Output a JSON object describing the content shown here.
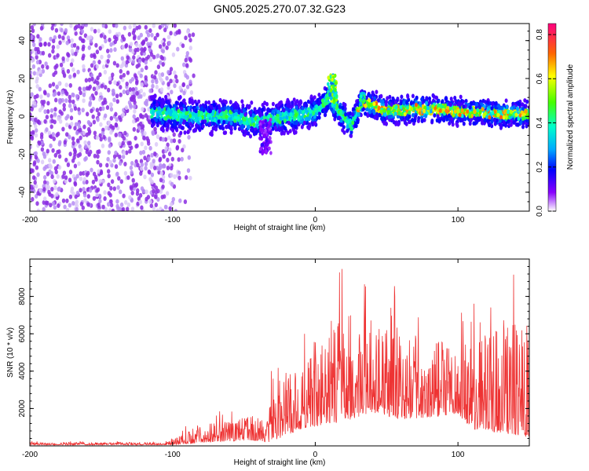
{
  "figure_title": "GN05.2025.270.07.32.G23",
  "chart_data": [
    {
      "type": "heatmap",
      "title": "GN05.2025.270.07.32.G23",
      "xlabel": "Height of straight line (km)",
      "ylabel": "Frequency (Hz)",
      "xlim": [
        -200,
        150
      ],
      "ylim": [
        -50,
        49
      ],
      "x_ticks": [
        -200,
        -100,
        0,
        100
      ],
      "y_ticks": [
        -40,
        -20,
        0,
        20,
        40
      ],
      "x_tick_labels": [
        "-200",
        "-100",
        "0",
        "100"
      ],
      "y_tick_labels": [
        "-40",
        "-20",
        "0",
        "20",
        "40"
      ],
      "colorbar": {
        "label": "Normalized spectral amplitude",
        "range": [
          0,
          0.85
        ],
        "ticks": [
          0,
          0.2,
          0.4,
          0.6,
          0.8
        ],
        "tick_labels": [
          "0.0",
          "0.2",
          "0.4",
          "0.6",
          "0.8"
        ]
      },
      "noise_region": {
        "x_range": [
          -200,
          -100
        ],
        "freq_range": [
          -50,
          49
        ],
        "amplitude": 0.1
      },
      "ridge_features": [
        {
          "x_center": 12,
          "peak_freq": 22,
          "width_km": 6,
          "amplitude": 0.6
        },
        {
          "x_center": 33,
          "peak_freq": 12,
          "width_km": 3,
          "amplitude": 0.5
        },
        {
          "x_center": -35,
          "peak_freq": -20,
          "width_km": 8,
          "amplitude": 0.15
        }
      ],
      "ridge_centerline": [
        {
          "x": -115,
          "freq": 2
        },
        {
          "x": -100,
          "freq": 1
        },
        {
          "x": -80,
          "freq": 0
        },
        {
          "x": -60,
          "freq": 0
        },
        {
          "x": -40,
          "freq": -3
        },
        {
          "x": -20,
          "freq": 0
        },
        {
          "x": 0,
          "freq": 2
        },
        {
          "x": 10,
          "freq": 10
        },
        {
          "x": 15,
          "freq": 4
        },
        {
          "x": 25,
          "freq": -5
        },
        {
          "x": 33,
          "freq": 8
        },
        {
          "x": 50,
          "freq": 3
        },
        {
          "x": 80,
          "freq": 4
        },
        {
          "x": 110,
          "freq": 2
        },
        {
          "x": 150,
          "freq": 1
        }
      ]
    },
    {
      "type": "line",
      "xlabel": "Height of straight line (km)",
      "ylabel": "SNR (10 * v/v)",
      "xlim": [
        -200,
        150
      ],
      "ylim": [
        0,
        10000
      ],
      "x_ticks": [
        -200,
        -100,
        0,
        100
      ],
      "y_ticks": [
        2000,
        4000,
        6000,
        8000
      ],
      "x_tick_labels": [
        "-200",
        "-100",
        "0",
        "100"
      ],
      "y_tick_labels": [
        "2000",
        "4000",
        "6000",
        "8000"
      ],
      "color": "#ee3333",
      "series": [
        {
          "name": "SNR",
          "envelope": [
            {
              "x": -200,
              "base": 50,
              "peak": 250
            },
            {
              "x": -110,
              "base": 50,
              "peak": 250
            },
            {
              "x": -100,
              "base": 60,
              "peak": 400
            },
            {
              "x": -90,
              "base": 100,
              "peak": 1100
            },
            {
              "x": -75,
              "base": 200,
              "peak": 1900
            },
            {
              "x": -60,
              "base": 250,
              "peak": 1800
            },
            {
              "x": -45,
              "base": 300,
              "peak": 2200
            },
            {
              "x": -33,
              "base": 200,
              "peak": 2000
            },
            {
              "x": -30,
              "base": 250,
              "peak": 6100
            },
            {
              "x": -10,
              "base": 900,
              "peak": 5500
            },
            {
              "x": 0,
              "base": 1000,
              "peak": 7500
            },
            {
              "x": 20,
              "base": 1300,
              "peak": 9600
            },
            {
              "x": 40,
              "base": 1800,
              "peak": 9300
            },
            {
              "x": 60,
              "base": 1400,
              "peak": 8500
            },
            {
              "x": 80,
              "base": 1500,
              "peak": 7500
            },
            {
              "x": 100,
              "base": 1700,
              "peak": 7000
            },
            {
              "x": 110,
              "base": 900,
              "peak": 7500
            },
            {
              "x": 130,
              "base": 700,
              "peak": 9300
            },
            {
              "x": 150,
              "base": 500,
              "peak": 9000
            }
          ],
          "samples": 1400
        }
      ]
    }
  ]
}
